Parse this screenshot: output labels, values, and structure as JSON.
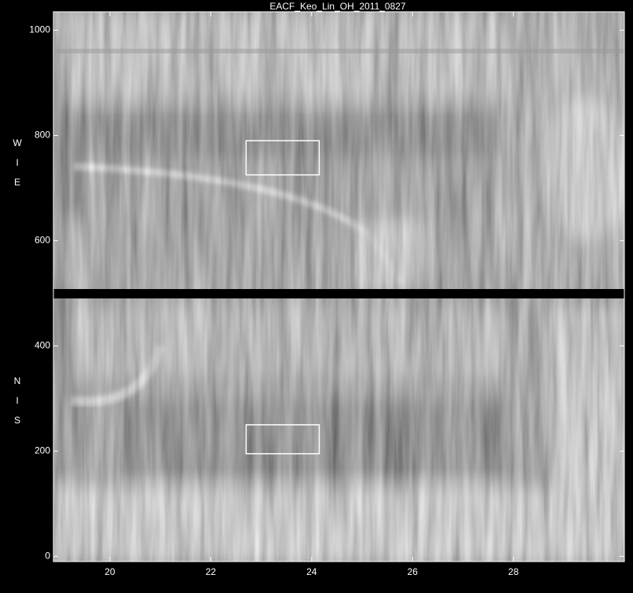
{
  "chart_data": {
    "type": "image",
    "title": "EACF_Keo_Lin_OH_2011_0827",
    "xlim": [
      18.88,
      30.2
    ],
    "xticks": [
      20,
      22,
      24,
      26,
      28
    ],
    "ylim": [
      -10,
      1035
    ],
    "yticks": [
      0,
      200,
      400,
      600,
      800,
      1000
    ],
    "upper_axis_label": [
      "W",
      "I",
      "E"
    ],
    "lower_axis_label": [
      "N",
      "I",
      "S"
    ],
    "regions": [
      {
        "x": [
          22.7,
          24.15
        ],
        "y": [
          725,
          790
        ]
      },
      {
        "x": [
          22.7,
          24.15
        ],
        "y": [
          195,
          250
        ]
      }
    ],
    "color": "#ffffff"
  }
}
